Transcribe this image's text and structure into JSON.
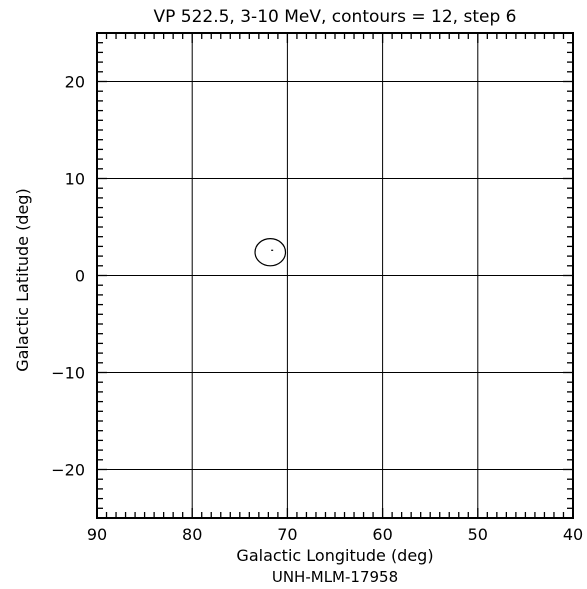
{
  "chart_data": {
    "type": "contour",
    "title": "VP 522.5, 3-10 MeV, contours = 12, step 6",
    "xlabel": "Galactic Longitude (deg)",
    "ylabel": "Galactic Latitude (deg)",
    "footer": "UNH-MLM-17958",
    "xlim": [
      90,
      40
    ],
    "ylim": [
      -25,
      25
    ],
    "x_major_ticks": [
      90,
      80,
      70,
      60,
      50,
      40
    ],
    "x_tick_labels": [
      "90",
      "80",
      "70",
      "60",
      "50",
      "40"
    ],
    "y_major_ticks": [
      -20,
      -10,
      0,
      10,
      20
    ],
    "y_tick_labels": [
      "−20",
      "−10",
      "0",
      "10",
      "20"
    ],
    "minor_tick_step": 1,
    "grid": true,
    "contours": [
      {
        "level": 1,
        "center": [
          71.8,
          2.4
        ],
        "radius_x": 1.6,
        "radius_y": 1.4
      }
    ],
    "peak_marker": {
      "x": 71.6,
      "y": 2.6
    }
  }
}
